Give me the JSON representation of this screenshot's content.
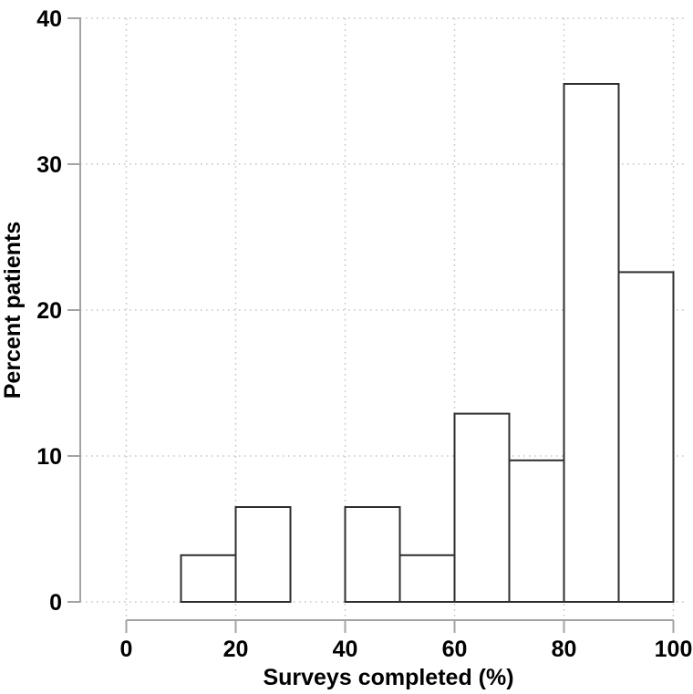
{
  "chart_data": {
    "type": "bar",
    "subtype": "histogram",
    "title": "",
    "xlabel": "Surveys completed (%)",
    "ylabel": "Percent patients",
    "xlim": [
      0,
      100
    ],
    "ylim": [
      0,
      40
    ],
    "x_ticks": [
      0,
      20,
      40,
      60,
      80,
      100
    ],
    "y_ticks": [
      0,
      10,
      20,
      30,
      40
    ],
    "bin_width": 10,
    "grid": "dotted",
    "legend": "none",
    "bins": [
      {
        "start": 10,
        "end": 20,
        "value": 3.2
      },
      {
        "start": 20,
        "end": 30,
        "value": 6.5
      },
      {
        "start": 40,
        "end": 50,
        "value": 6.5
      },
      {
        "start": 50,
        "end": 60,
        "value": 3.2
      },
      {
        "start": 60,
        "end": 70,
        "value": 12.9
      },
      {
        "start": 70,
        "end": 80,
        "value": 9.7
      },
      {
        "start": 80,
        "end": 90,
        "value": 35.5
      },
      {
        "start": 90,
        "end": 100,
        "value": 22.6
      }
    ],
    "colors": {
      "background": "#ffffff",
      "bar_fill": "#ffffff",
      "bar_stroke": "#2e2e2e",
      "grid": "#c6c6c6",
      "axis": "#a3a3a3",
      "text": "#000000"
    }
  }
}
